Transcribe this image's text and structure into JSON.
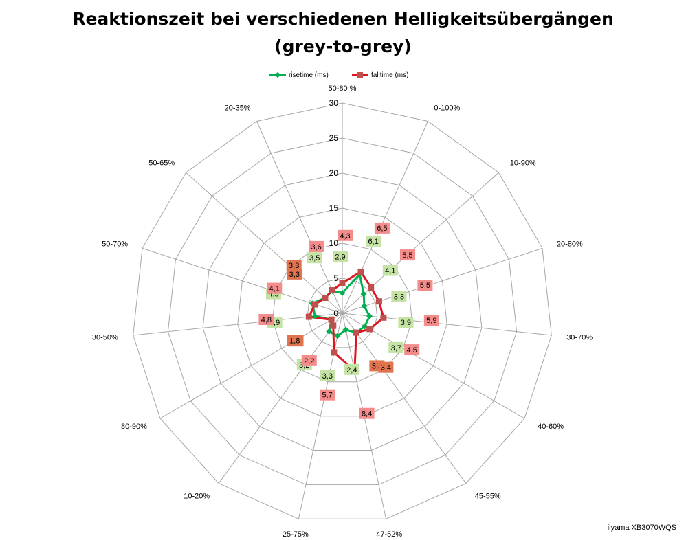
{
  "title_line1": "Reaktionszeit bei verschiedenen Helligkeitsübergängen",
  "title_line2": "(grey-to-grey)",
  "footer": "iiyama XB3070WQS",
  "colors": {
    "rise": "#00b050",
    "fall": "#e0141e",
    "fall_marker": "#c0504d",
    "rise_label_bg": "#c4e3a4",
    "fall_label_bg": "#f48c8c",
    "mixed_label_bg": "#e0744e",
    "grid": "#a6a6a6"
  },
  "chart_data": {
    "type": "radar",
    "title": "Reaktionszeit bei verschiedenen Helligkeitsübergängen (grey-to-grey)",
    "categories": [
      "50-80 %",
      "0-100%",
      "10-90%",
      "20-80%",
      "30-70%",
      "40-60%",
      "45-55%",
      "47-52%",
      "25-75%",
      "10-20%",
      "80-90%",
      "30-50%",
      "50-70%",
      "50-65%",
      "20-35%"
    ],
    "rlim": [
      0,
      30
    ],
    "ticks": [
      0,
      5,
      10,
      15,
      20,
      25,
      30
    ],
    "tick_labels": [
      "0",
      "5",
      "10",
      "15",
      "20",
      "25",
      "30"
    ],
    "series": [
      {
        "name": "risetime (ms)",
        "values": [
          2.9,
          6.1,
          4.1,
          3.3,
          3.9,
          3.7,
          3.4,
          2.4,
          3.3,
          3.2,
          1.8,
          3.9,
          4.5,
          3.3,
          3.5
        ],
        "labels": [
          "2,9",
          "6,1",
          "4,1",
          "3,3",
          "3,9",
          "3,7",
          "3,4",
          "2,4",
          "3,3",
          "3,2",
          "1,8",
          "3,9",
          "4,5",
          "3,3",
          "3,5"
        ]
      },
      {
        "name": "falltime (ms)",
        "values": [
          4.3,
          6.5,
          5.5,
          5.5,
          5.9,
          4.5,
          3.4,
          8.4,
          5.7,
          2.2,
          1.8,
          4.8,
          4.1,
          3.3,
          3.6
        ],
        "labels": [
          "4,3",
          "6,5",
          "5,5",
          "5,5",
          "5,9",
          "4,5",
          "3,4",
          "8,4",
          "5,7",
          "2,2",
          "1,8",
          "4,8",
          "4,1",
          "3,3",
          "3,6"
        ]
      }
    ]
  }
}
